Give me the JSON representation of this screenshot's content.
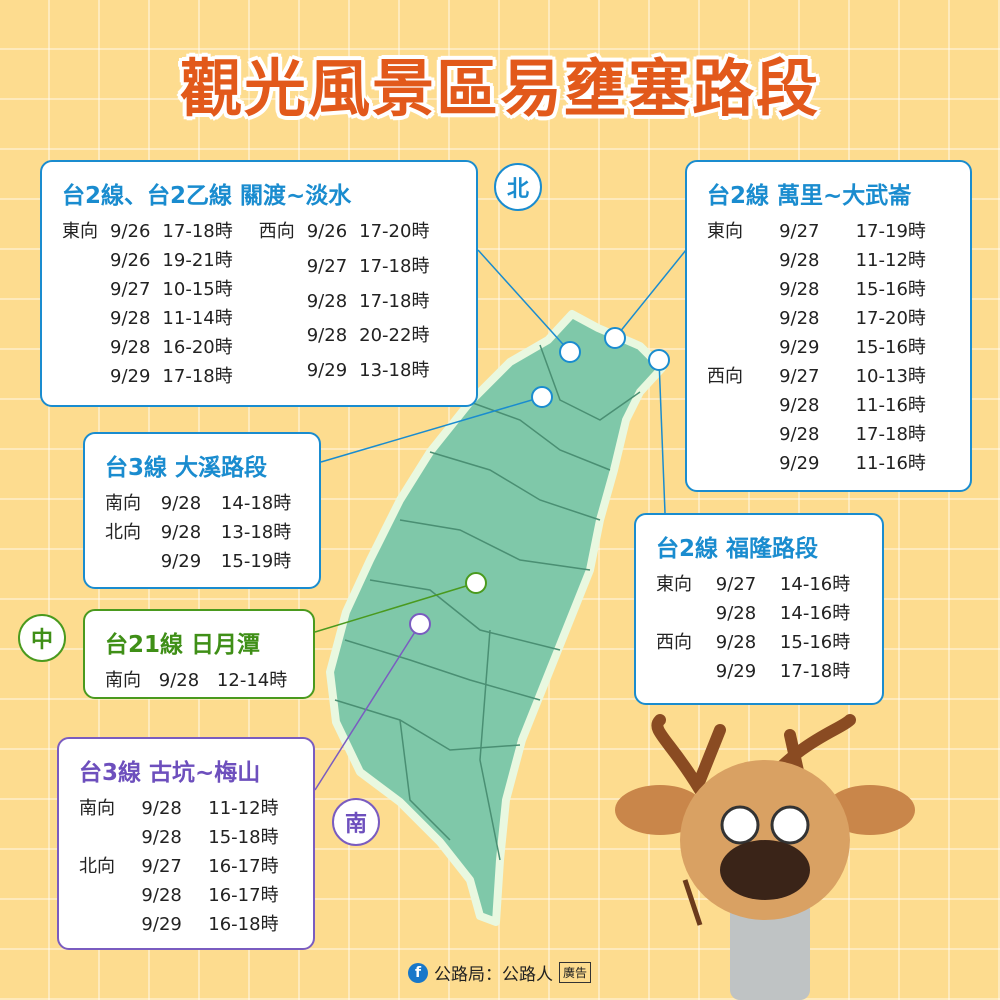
{
  "title": "觀光風景區易壅塞路段",
  "badges": {
    "north": "北",
    "central": "中",
    "south": "南"
  },
  "routes": {
    "danshui": {
      "title": "台2線、台2乙線 關渡~淡水",
      "east": [
        {
          "dir": "東向",
          "date": "9/26",
          "time": "17-18時"
        },
        {
          "dir": "",
          "date": "9/26",
          "time": "19-21時"
        },
        {
          "dir": "",
          "date": "9/27",
          "time": "10-15時"
        },
        {
          "dir": "",
          "date": "9/28",
          "time": "11-14時"
        },
        {
          "dir": "",
          "date": "9/28",
          "time": "16-20時"
        },
        {
          "dir": "",
          "date": "9/29",
          "time": "17-18時"
        }
      ],
      "west": [
        {
          "dir": "西向",
          "date": "9/26",
          "time": "17-20時"
        },
        {
          "dir": "",
          "date": "9/27",
          "time": "17-18時"
        },
        {
          "dir": "",
          "date": "9/28",
          "time": "17-18時"
        },
        {
          "dir": "",
          "date": "9/28",
          "time": "20-22時"
        },
        {
          "dir": "",
          "date": "9/29",
          "time": "13-18時"
        }
      ]
    },
    "wanli": {
      "title": "台2線 萬里~大武崙",
      "rows": [
        {
          "dir": "東向",
          "date": "9/27",
          "time": "17-19時"
        },
        {
          "dir": "",
          "date": "9/28",
          "time": "11-12時"
        },
        {
          "dir": "",
          "date": "9/28",
          "time": "15-16時"
        },
        {
          "dir": "",
          "date": "9/28",
          "time": "17-20時"
        },
        {
          "dir": "",
          "date": "9/29",
          "time": "15-16時"
        },
        {
          "dir": "西向",
          "date": "9/27",
          "time": "10-13時"
        },
        {
          "dir": "",
          "date": "9/28",
          "time": "11-16時"
        },
        {
          "dir": "",
          "date": "9/28",
          "time": "17-18時"
        },
        {
          "dir": "",
          "date": "9/29",
          "time": "11-16時"
        }
      ]
    },
    "daxi": {
      "title": "台3線 大溪路段",
      "rows": [
        {
          "dir": "南向",
          "date": "9/28",
          "time": "14-18時"
        },
        {
          "dir": "北向",
          "date": "9/28",
          "time": "13-18時"
        },
        {
          "dir": "",
          "date": "9/29",
          "time": "15-19時"
        }
      ]
    },
    "fulong": {
      "title": "台2線 福隆路段",
      "rows": [
        {
          "dir": "東向",
          "date": "9/27",
          "time": "14-16時"
        },
        {
          "dir": "",
          "date": "9/28",
          "time": "14-16時"
        },
        {
          "dir": "西向",
          "date": "9/28",
          "time": "15-16時"
        },
        {
          "dir": "",
          "date": "9/29",
          "time": "17-18時"
        }
      ]
    },
    "sunmoonlake": {
      "title": "台21線 日月潭",
      "rows": [
        {
          "dir": "南向",
          "date": "9/28",
          "time": "12-14時"
        }
      ]
    },
    "gukeng": {
      "title": "台3線 古坑~梅山",
      "rows": [
        {
          "dir": "南向",
          "date": "9/28",
          "time": "11-12時"
        },
        {
          "dir": "",
          "date": "9/28",
          "time": "15-18時"
        },
        {
          "dir": "北向",
          "date": "9/27",
          "time": "16-17時"
        },
        {
          "dir": "",
          "date": "9/28",
          "time": "16-17時"
        },
        {
          "dir": "",
          "date": "9/29",
          "time": "16-18時"
        }
      ]
    }
  },
  "footer": {
    "source": "公路局：公路人",
    "ad": "廣告",
    "fb_icon": "f"
  },
  "colors": {
    "north": "#1a8ccf",
    "central": "#4a9a1e",
    "south": "#7a5cc0",
    "map": "#7fc8a9",
    "title": "#e2591b"
  }
}
